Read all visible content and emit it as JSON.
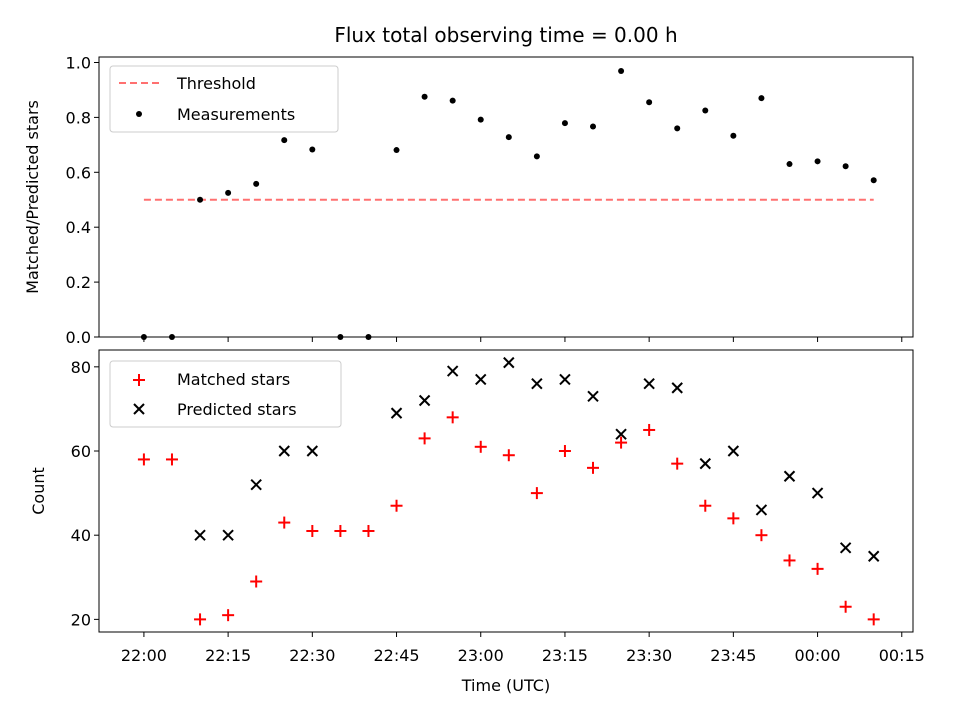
{
  "chart_data": [
    {
      "type": "scatter",
      "title": "Flux total observing time = 0.00 h",
      "xlabel": "",
      "ylabel": "Matched/Predicted stars",
      "xlim": [
        "21:52",
        "00:17"
      ],
      "ylim": [
        0,
        1.02
      ],
      "yticks": [
        0.0,
        0.2,
        0.4,
        0.6,
        0.8,
        1.0
      ],
      "ytick_labels": [
        "0.0",
        "0.2",
        "0.4",
        "0.6",
        "0.8",
        "1.0"
      ],
      "legend_position": "upper-left",
      "threshold": {
        "name": "Threshold",
        "value": 0.5,
        "x_start": "22:00",
        "x_end": "00:10",
        "color": "#ff7070",
        "style": "dashed"
      },
      "series": [
        {
          "name": "Measurements",
          "color": "#000000",
          "marker": "dot",
          "x": [
            "22:00",
            "22:05",
            "22:10",
            "22:15",
            "22:20",
            "22:25",
            "22:30",
            "22:35",
            "22:40",
            "22:45",
            "22:50",
            "22:55",
            "23:00",
            "23:05",
            "23:10",
            "23:15",
            "23:20",
            "23:25",
            "23:30",
            "23:35",
            "23:40",
            "23:45",
            "23:50",
            "23:55",
            "00:00",
            "00:05",
            "00:10"
          ],
          "y": [
            0.0,
            0.0,
            0.5,
            0.525,
            0.558,
            0.717,
            0.683,
            0.0,
            0.0,
            0.681,
            0.875,
            0.861,
            0.792,
            0.728,
            0.658,
            0.779,
            0.767,
            0.969,
            0.855,
            0.76,
            0.825,
            0.733,
            0.87,
            0.63,
            0.64,
            0.622,
            0.571
          ]
        }
      ]
    },
    {
      "type": "scatter",
      "title": "",
      "xlabel": "Time (UTC)",
      "ylabel": "Count",
      "xlim": [
        "21:52",
        "00:17"
      ],
      "ylim": [
        17,
        84
      ],
      "yticks": [
        20,
        40,
        60,
        80
      ],
      "ytick_labels": [
        "20",
        "40",
        "60",
        "80"
      ],
      "xticks": [
        "22:00",
        "22:15",
        "22:30",
        "22:45",
        "23:00",
        "23:15",
        "23:30",
        "23:45",
        "00:00",
        "00:15"
      ],
      "xtick_labels": [
        "22:00",
        "22:15",
        "22:30",
        "22:45",
        "23:00",
        "23:15",
        "23:30",
        "23:45",
        "00:00",
        "00:15"
      ],
      "legend_position": "upper-left",
      "series": [
        {
          "name": "Matched stars",
          "color": "#ff0000",
          "marker": "plus",
          "x": [
            "22:00",
            "22:05",
            "22:10",
            "22:15",
            "22:20",
            "22:25",
            "22:30",
            "22:35",
            "22:40",
            "22:45",
            "22:50",
            "22:55",
            "23:00",
            "23:05",
            "23:10",
            "23:15",
            "23:20",
            "23:25",
            "23:30",
            "23:35",
            "23:40",
            "23:45",
            "23:50",
            "23:55",
            "00:00",
            "00:05",
            "00:10"
          ],
          "y": [
            58,
            58,
            20,
            21,
            29,
            43,
            41,
            41,
            41,
            47,
            63,
            68,
            61,
            59,
            50,
            60,
            56,
            62,
            65,
            57,
            47,
            44,
            40,
            34,
            32,
            23,
            20
          ]
        },
        {
          "name": "Predicted stars",
          "color": "#000000",
          "marker": "x",
          "x": [
            "22:10",
            "22:15",
            "22:20",
            "22:25",
            "22:30",
            "22:45",
            "22:50",
            "22:55",
            "23:00",
            "23:05",
            "23:10",
            "23:15",
            "23:20",
            "23:25",
            "23:30",
            "23:35",
            "23:40",
            "23:45",
            "23:50",
            "23:55",
            "00:00",
            "00:05",
            "00:10"
          ],
          "y": [
            40,
            40,
            52,
            60,
            60,
            69,
            72,
            79,
            77,
            81,
            76,
            77,
            73,
            64,
            76,
            75,
            57,
            60,
            46,
            54,
            50,
            37,
            35
          ]
        }
      ]
    }
  ]
}
